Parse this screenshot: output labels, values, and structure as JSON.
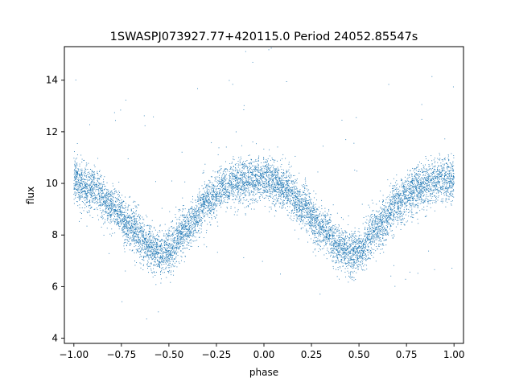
{
  "chart_data": {
    "type": "scatter",
    "title": "1SWASPJ073927.77+420115.0 Period 24052.85547s",
    "xlabel": "phase",
    "ylabel": "flux",
    "xlim": [
      -1.05,
      1.05
    ],
    "ylim": [
      3.8,
      15.3
    ],
    "xticks": [
      -1.0,
      -0.75,
      -0.5,
      -0.25,
      0.0,
      0.25,
      0.5,
      0.75,
      1.0
    ],
    "xtick_labels": [
      "−1.00",
      "−0.75",
      "−0.50",
      "−0.25",
      "0.00",
      "0.25",
      "0.50",
      "0.75",
      "1.00"
    ],
    "yticks": [
      4,
      6,
      8,
      10,
      12,
      14
    ],
    "ytick_labels": [
      "4",
      "6",
      "8",
      "10",
      "12",
      "14"
    ],
    "grid": false,
    "marker_color": "#1f77b4",
    "phase_range": [
      -1.0,
      1.0
    ],
    "curve_samples": {
      "x": [
        -1.0,
        -0.9,
        -0.8,
        -0.7,
        -0.6,
        -0.55,
        -0.5,
        -0.4,
        -0.3,
        -0.2,
        -0.1,
        0.0,
        0.1,
        0.2,
        0.3,
        0.4,
        0.45,
        0.5,
        0.6,
        0.7,
        0.8,
        0.9,
        1.0
      ],
      "y": [
        10.1,
        9.8,
        9.1,
        8.3,
        7.55,
        7.3,
        7.4,
        8.3,
        9.3,
        9.9,
        10.1,
        10.2,
        9.9,
        9.2,
        8.3,
        7.55,
        7.3,
        7.4,
        8.3,
        9.2,
        9.8,
        10.1,
        10.2
      ]
    }
  }
}
